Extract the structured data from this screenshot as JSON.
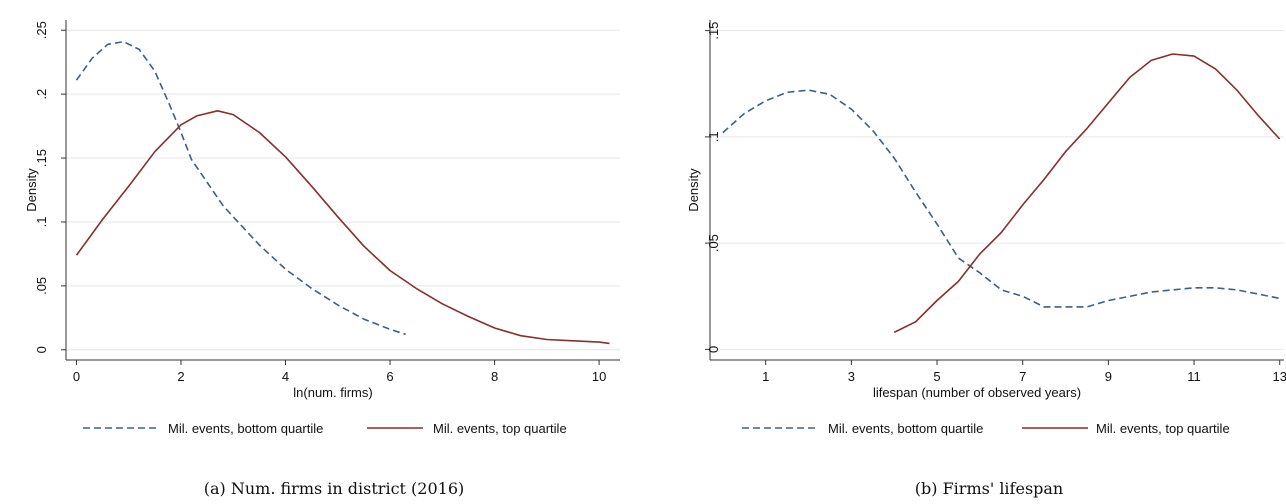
{
  "chart_data": [
    {
      "type": "line",
      "caption": "(a) Num. firms in district (2016)",
      "xlabel": "ln(num. firms)",
      "ylabel": "Density",
      "xlim": [
        -0.2,
        10.4
      ],
      "ylim": [
        -0.008,
        0.258
      ],
      "xticks": [
        0,
        2,
        4,
        6,
        8,
        10
      ],
      "xtick_labels": [
        "0",
        "2",
        "4",
        "6",
        "8",
        "10"
      ],
      "yticks": [
        0,
        0.05,
        0.1,
        0.15,
        0.2,
        0.25
      ],
      "ytick_labels": [
        "0",
        ".05",
        ".1",
        ".15",
        ".2",
        ".25"
      ],
      "grid": true,
      "legend_position": "bottom",
      "series": [
        {
          "name": "Mil. events, bottom quartile",
          "color": "#3a5f8a",
          "dash": "dashed",
          "x": [
            0,
            0.3,
            0.6,
            0.9,
            1.2,
            1.5,
            1.8,
            2.0,
            2.2,
            2.5,
            2.8,
            3.0,
            3.5,
            4.0,
            4.5,
            5.0,
            5.5,
            6.0,
            6.3
          ],
          "y": [
            0.211,
            0.228,
            0.239,
            0.241,
            0.235,
            0.218,
            0.19,
            0.17,
            0.149,
            0.131,
            0.113,
            0.104,
            0.082,
            0.063,
            0.048,
            0.035,
            0.024,
            0.016,
            0.012
          ]
        },
        {
          "name": "Mil. events, top quartile",
          "color": "#8b2d2d",
          "dash": "solid",
          "x": [
            0,
            0.5,
            1.0,
            1.5,
            2.0,
            2.3,
            2.7,
            3.0,
            3.5,
            4.0,
            4.5,
            5.0,
            5.5,
            6.0,
            6.5,
            7.0,
            7.5,
            8.0,
            8.5,
            9.0,
            9.5,
            10.0,
            10.2
          ],
          "y": [
            0.074,
            0.102,
            0.128,
            0.155,
            0.176,
            0.183,
            0.187,
            0.184,
            0.17,
            0.151,
            0.128,
            0.104,
            0.081,
            0.062,
            0.048,
            0.036,
            0.026,
            0.017,
            0.011,
            0.008,
            0.007,
            0.006,
            0.005
          ]
        }
      ]
    },
    {
      "type": "line",
      "caption": "(b) Firms' lifespan",
      "xlabel": "lifespan (number of observed years)",
      "ylabel": "Density",
      "xlim": [
        -0.3,
        13.1
      ],
      "ylim": [
        -0.005,
        0.155
      ],
      "xticks": [
        1,
        3,
        5,
        7,
        9,
        11,
        13
      ],
      "xtick_labels": [
        "1",
        "3",
        "5",
        "7",
        "9",
        "11",
        "13"
      ],
      "yticks": [
        0,
        0.05,
        0.1,
        0.15
      ],
      "ytick_labels": [
        "0",
        ".05",
        ".1",
        ".15"
      ],
      "grid": true,
      "legend_position": "bottom",
      "series": [
        {
          "name": "Mil. events, bottom quartile",
          "color": "#3a5f8a",
          "dash": "dashed",
          "x": [
            0,
            0.5,
            1.0,
            1.5,
            2.0,
            2.5,
            3.0,
            3.5,
            4.0,
            4.5,
            5.0,
            5.5,
            6.0,
            6.5,
            7.0,
            7.5,
            8.0,
            8.5,
            9.0,
            9.5,
            10.0,
            10.5,
            11.0,
            11.5,
            12.0,
            12.5,
            13.0
          ],
          "y": [
            0.102,
            0.111,
            0.117,
            0.121,
            0.122,
            0.12,
            0.113,
            0.103,
            0.09,
            0.074,
            0.059,
            0.043,
            0.036,
            0.028,
            0.025,
            0.02,
            0.02,
            0.02,
            0.023,
            0.025,
            0.027,
            0.028,
            0.029,
            0.029,
            0.028,
            0.026,
            0.024
          ]
        },
        {
          "name": "Mil. events, top quartile",
          "color": "#8b2d2d",
          "dash": "solid",
          "x": [
            4.0,
            4.5,
            5.0,
            5.5,
            6.0,
            6.5,
            7.0,
            7.5,
            8.0,
            8.5,
            9.0,
            9.5,
            10.0,
            10.5,
            11.0,
            11.5,
            12.0,
            12.5,
            13.0
          ],
          "y": [
            0.008,
            0.013,
            0.023,
            0.032,
            0.045,
            0.055,
            0.068,
            0.08,
            0.093,
            0.104,
            0.116,
            0.128,
            0.136,
            0.139,
            0.138,
            0.132,
            0.122,
            0.11,
            0.099
          ]
        }
      ]
    }
  ]
}
